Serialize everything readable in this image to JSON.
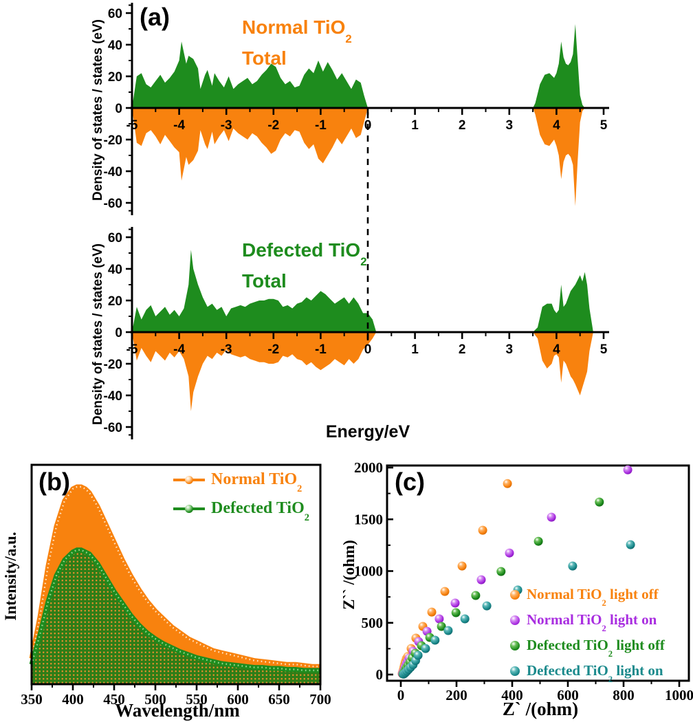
{
  "panel_a": {
    "label": "(a)",
    "xlabel": "Energy/eV",
    "ylabel": "Density of states / states (eV)",
    "subplots": [
      {
        "name": "normal",
        "title_prefix": "Normal TiO",
        "title_sub": "2",
        "title_line2": "Total",
        "color": "#f8820e"
      },
      {
        "name": "defected",
        "title_prefix": "Defected TiO",
        "title_sub": "2",
        "title_line2": "Total",
        "color": "#1e8c1e"
      }
    ]
  },
  "panel_b": {
    "label": "(b)",
    "xlabel": "Wavelength/nm",
    "ylabel": "Intensity/a.u.",
    "legend": [
      {
        "prefix": "Normal TiO",
        "sub": "2",
        "color": "#f8820e"
      },
      {
        "prefix": "Defected TiO",
        "sub": "2",
        "color": "#1e8c1e"
      }
    ]
  },
  "panel_c": {
    "label": "(c)",
    "xlabel": "Z` /(ohm)",
    "ylabel": "Z`` /(ohm)",
    "legend": [
      {
        "prefix": "Normal TiO",
        "sub": "2",
        "suffix": " light off",
        "color": "#f8820e"
      },
      {
        "prefix": "Normal TiO",
        "sub": "2",
        "suffix": " light on",
        "color": "#a92ee0"
      },
      {
        "prefix": "Defected TiO",
        "sub": "2",
        "suffix": " light off",
        "color": "#1e8c1e"
      },
      {
        "prefix": "Defected TiO",
        "sub": "2",
        "suffix": " light on",
        "color": "#1b8a8c"
      }
    ]
  },
  "chart_data": [
    {
      "id": "dos_normal",
      "type": "area",
      "title": "Normal TiO2 Total",
      "xlabel": "Energy/eV",
      "ylabel": "Density of states / states (eV)",
      "xlim": [
        -5,
        5
      ],
      "ylim": [
        -70,
        70
      ],
      "x_ticks": [
        -5,
        -4,
        -3,
        -2,
        -1,
        0,
        1,
        2,
        3,
        4,
        5
      ],
      "y_ticks": [
        60,
        40,
        20,
        0,
        -20,
        -40,
        -60
      ],
      "fermi_x": 0,
      "up_color": "#1e8c1e",
      "down_color": "#f8820e",
      "vb_x": [
        -5,
        -4.9,
        -4.8,
        -4.7,
        -4.6,
        -4.5,
        -4.4,
        -4.3,
        -4.2,
        -4.1,
        -4.0,
        -3.95,
        -3.85,
        -3.8,
        -3.7,
        -3.6,
        -3.55,
        -3.45,
        -3.4,
        -3.3,
        -3.25,
        -3.15,
        -3.05,
        -2.95,
        -2.85,
        -2.75,
        -2.65,
        -2.55,
        -2.45,
        -2.35,
        -2.25,
        -2.15,
        -2.05,
        -1.95,
        -1.85,
        -1.75,
        -1.65,
        -1.55,
        -1.45,
        -1.35,
        -1.25,
        -1.15,
        -1.05,
        -0.95,
        -0.85,
        -0.75,
        -0.65,
        -0.55,
        -0.45,
        -0.35,
        -0.25,
        -0.15,
        -0.08,
        0
      ],
      "vb_up": [
        0,
        20,
        22,
        15,
        13,
        17,
        21,
        16,
        19,
        23,
        30,
        42,
        28,
        33,
        31,
        25,
        12,
        21,
        24,
        14,
        22,
        17,
        13,
        20,
        12,
        15,
        17,
        19,
        15,
        17,
        21,
        24,
        28,
        26,
        19,
        15,
        17,
        13,
        14,
        21,
        25,
        22,
        30,
        23,
        29,
        24,
        18,
        22,
        17,
        12,
        18,
        16,
        8,
        0
      ],
      "vb_down": [
        0,
        -22,
        -24,
        -16,
        -14,
        -18,
        -23,
        -17,
        -21,
        -25,
        -28,
        -46,
        -31,
        -36,
        -33,
        -27,
        -14,
        -23,
        -26,
        -15,
        -23,
        -18,
        -14,
        -21,
        -13,
        -16,
        -18,
        -20,
        -16,
        -18,
        -22,
        -25,
        -29,
        -27,
        -20,
        -16,
        -18,
        -14,
        -15,
        -22,
        -26,
        -23,
        -32,
        -35,
        -30,
        -25,
        -19,
        -23,
        -18,
        -13,
        -19,
        -17,
        -9,
        0
      ],
      "cb_x": [
        3.5,
        3.55,
        3.65,
        3.75,
        3.85,
        3.95,
        4.0,
        4.05,
        4.1,
        4.15,
        4.2,
        4.25,
        4.3,
        4.35,
        4.4,
        4.45,
        4.5,
        4.55,
        4.6
      ],
      "cb_up": [
        0,
        3,
        15,
        21,
        22,
        19,
        22,
        28,
        42,
        32,
        28,
        27,
        29,
        34,
        53,
        30,
        8,
        2,
        0
      ],
      "cb_down": [
        0,
        -4,
        -17,
        -23,
        -24,
        -20,
        -24,
        -30,
        -45,
        -34,
        -30,
        -29,
        -31,
        -36,
        -62,
        -33,
        -9,
        -2,
        0
      ]
    },
    {
      "id": "dos_defected",
      "type": "area",
      "title": "Defected TiO2 Total",
      "xlabel": "Energy/eV",
      "ylabel": "Density of states / states (eV)",
      "xlim": [
        -5,
        5
      ],
      "ylim": [
        -70,
        70
      ],
      "x_ticks": [
        -5,
        -4,
        -3,
        -2,
        -1,
        0,
        1,
        2,
        3,
        4,
        5
      ],
      "y_ticks": [
        60,
        40,
        20,
        0,
        -20,
        -40,
        -60
      ],
      "fermi_x": 0,
      "up_color": "#1e8c1e",
      "down_color": "#f8820e",
      "vb_x": [
        -5,
        -4.9,
        -4.8,
        -4.7,
        -4.6,
        -4.5,
        -4.4,
        -4.3,
        -4.2,
        -4.1,
        -4.0,
        -3.9,
        -3.8,
        -3.75,
        -3.7,
        -3.6,
        -3.5,
        -3.4,
        -3.3,
        -3.2,
        -3.1,
        -3.0,
        -2.9,
        -2.8,
        -2.7,
        -2.6,
        -2.5,
        -2.4,
        -2.3,
        -2.2,
        -2.1,
        -2.0,
        -1.9,
        -1.8,
        -1.7,
        -1.6,
        -1.5,
        -1.4,
        -1.3,
        -1.2,
        -1.1,
        -1.0,
        -0.9,
        -0.8,
        -0.7,
        -0.6,
        -0.5,
        -0.4,
        -0.3,
        -0.2,
        -0.1,
        0,
        0.1,
        0.18
      ],
      "vb_up": [
        0,
        16,
        8,
        14,
        17,
        10,
        13,
        16,
        11,
        14,
        10,
        15,
        30,
        52,
        40,
        30,
        22,
        16,
        18,
        14,
        16,
        10,
        15,
        16,
        17,
        16,
        18,
        19,
        20,
        20,
        21,
        21,
        20,
        16,
        17,
        15,
        18,
        19,
        22,
        20,
        23,
        26,
        24,
        21,
        18,
        20,
        22,
        18,
        22,
        18,
        12,
        12,
        8,
        0
      ],
      "vb_down": [
        0,
        -18,
        -10,
        -15,
        -19,
        -12,
        -15,
        -18,
        -13,
        -16,
        -12,
        -17,
        -28,
        -50,
        -38,
        -28,
        -20,
        -15,
        -17,
        -13,
        -15,
        -11,
        -14,
        -15,
        -16,
        -15,
        -17,
        -18,
        -19,
        -19,
        -20,
        -20,
        -19,
        -15,
        -16,
        -14,
        -17,
        -18,
        -21,
        -19,
        -22,
        -24,
        -22,
        -20,
        -17,
        -19,
        -21,
        -17,
        -20,
        -17,
        -11,
        -8,
        -4,
        0
      ],
      "cb_x": [
        3.5,
        3.6,
        3.7,
        3.8,
        3.9,
        3.95,
        4.0,
        4.05,
        4.1,
        4.15,
        4.2,
        4.3,
        4.35,
        4.4,
        4.5,
        4.55,
        4.6,
        4.65,
        4.7,
        4.78
      ],
      "cb_up": [
        0,
        3,
        16,
        18,
        18,
        14,
        12,
        14,
        30,
        16,
        18,
        26,
        28,
        30,
        36,
        32,
        38,
        30,
        15,
        0
      ],
      "cb_down": [
        0,
        -4,
        -18,
        -23,
        -20,
        -15,
        -14,
        -16,
        -32,
        -18,
        -20,
        -28,
        -30,
        -33,
        -40,
        -35,
        -30,
        -25,
        -12,
        0
      ]
    },
    {
      "id": "pl",
      "type": "area",
      "xlabel": "Wavelength/nm",
      "ylabel": "Intensity/a.u.",
      "xlim": [
        350,
        700
      ],
      "x_ticks": [
        350,
        400,
        450,
        500,
        550,
        600,
        650,
        700
      ],
      "x": [
        350,
        360,
        370,
        380,
        390,
        400,
        405,
        410,
        415,
        420,
        430,
        440,
        450,
        460,
        470,
        480,
        490,
        500,
        510,
        520,
        530,
        540,
        550,
        560,
        570,
        580,
        590,
        600,
        610,
        620,
        630,
        640,
        650,
        660,
        670,
        680,
        690,
        700
      ],
      "series": [
        {
          "name": "Normal TiO2",
          "color": "#f8820e",
          "marker": {
            "light": "#ffd9ad",
            "base": "#f8820e",
            "dark": "#d96a00"
          },
          "values": [
            0.13,
            0.34,
            0.6,
            0.8,
            0.93,
            0.99,
            1.0,
            1.0,
            0.99,
            0.97,
            0.9,
            0.81,
            0.72,
            0.63,
            0.55,
            0.48,
            0.42,
            0.37,
            0.33,
            0.29,
            0.26,
            0.23,
            0.21,
            0.19,
            0.17,
            0.16,
            0.15,
            0.14,
            0.13,
            0.12,
            0.115,
            0.11,
            0.105,
            0.1,
            0.1,
            0.095,
            0.09,
            0.09
          ]
        },
        {
          "name": "Defected TiO2",
          "color": "#1e8c1e",
          "marker": {
            "light": "#a9dba0",
            "base": "#1e8c1e",
            "dark": "#0d5e0d"
          },
          "values": [
            0.1,
            0.25,
            0.42,
            0.55,
            0.63,
            0.67,
            0.68,
            0.68,
            0.67,
            0.66,
            0.61,
            0.54,
            0.47,
            0.41,
            0.35,
            0.3,
            0.26,
            0.23,
            0.205,
            0.185,
            0.165,
            0.15,
            0.135,
            0.125,
            0.115,
            0.105,
            0.1,
            0.095,
            0.09,
            0.085,
            0.085,
            0.08,
            0.08,
            0.075,
            0.075,
            0.07,
            0.07,
            0.07
          ]
        }
      ]
    },
    {
      "id": "eis",
      "type": "scatter",
      "xlabel": "Z` /(ohm)",
      "ylabel": "Z`` /(ohm)",
      "xlim": [
        0,
        1000
      ],
      "ylim": [
        0,
        2000
      ],
      "x_ticks": [
        0,
        200,
        400,
        600,
        800,
        1000
      ],
      "y_ticks": [
        0,
        500,
        1000,
        1500,
        2000
      ],
      "series": [
        {
          "name": "Normal TiO2 light off",
          "color": "#f8820e",
          "marker": {
            "light": "#ffb366",
            "base": "#f8820e",
            "dark": "#cc6300"
          },
          "points": [
            [
              5,
              10
            ],
            [
              7,
              25
            ],
            [
              9,
              45
            ],
            [
              11,
              70
            ],
            [
              13,
              95
            ],
            [
              16,
              125
            ],
            [
              20,
              155
            ],
            [
              25,
              175
            ],
            [
              37,
              252
            ],
            [
              54,
              352
            ],
            [
              79,
              465
            ],
            [
              111,
              604
            ],
            [
              158,
              803
            ],
            [
              220,
              1049
            ],
            [
              294,
              1395
            ],
            [
              383,
              1845
            ]
          ]
        },
        {
          "name": "Normal TiO2 light on",
          "color": "#a92ee0",
          "marker": {
            "light": "#d489f2",
            "base": "#a92ee0",
            "dark": "#7a0fb0"
          },
          "points": [
            [
              6,
              8
            ],
            [
              8,
              18
            ],
            [
              10,
              32
            ],
            [
              13,
              52
            ],
            [
              16,
              75
            ],
            [
              20,
              105
            ],
            [
              25,
              130
            ],
            [
              30,
              159
            ],
            [
              44,
              226
            ],
            [
              64,
              319
            ],
            [
              94,
              418
            ],
            [
              138,
              538
            ],
            [
              195,
              691
            ],
            [
              289,
              916
            ],
            [
              390,
              1175
            ],
            [
              541,
              1521
            ],
            [
              815,
              1978
            ]
          ]
        },
        {
          "name": "Defected TiO2 light off",
          "color": "#1e8c1e",
          "marker": {
            "light": "#6cc05a",
            "base": "#1e8c1e",
            "dark": "#0d5e0d"
          },
          "points": [
            [
              8,
              6
            ],
            [
              10,
              15
            ],
            [
              13,
              28
            ],
            [
              16,
              45
            ],
            [
              20,
              65
            ],
            [
              26,
              90
            ],
            [
              33,
              120
            ],
            [
              41,
              160
            ],
            [
              52,
              206
            ],
            [
              74,
              279
            ],
            [
              104,
              359
            ],
            [
              146,
              465
            ],
            [
              198,
              598
            ],
            [
              269,
              764
            ],
            [
              360,
              996
            ],
            [
              494,
              1288
            ],
            [
              713,
              1667
            ]
          ]
        },
        {
          "name": "Defected TiO2 light on",
          "color": "#1b8a8c",
          "marker": {
            "light": "#5fbaba",
            "base": "#1b8a8c",
            "dark": "#0a5c60"
          },
          "points": [
            [
              10,
              4
            ],
            [
              13,
              10
            ],
            [
              17,
              20
            ],
            [
              22,
              33
            ],
            [
              28,
              50
            ],
            [
              35,
              70
            ],
            [
              44,
              95
            ],
            [
              53,
              135
            ],
            [
              62,
              186
            ],
            [
              89,
              252
            ],
            [
              123,
              332
            ],
            [
              170,
              425
            ],
            [
              230,
              538
            ],
            [
              309,
              664
            ],
            [
              420,
              817
            ],
            [
              617,
              1049
            ],
            [
              825,
              1255
            ]
          ]
        }
      ]
    }
  ]
}
